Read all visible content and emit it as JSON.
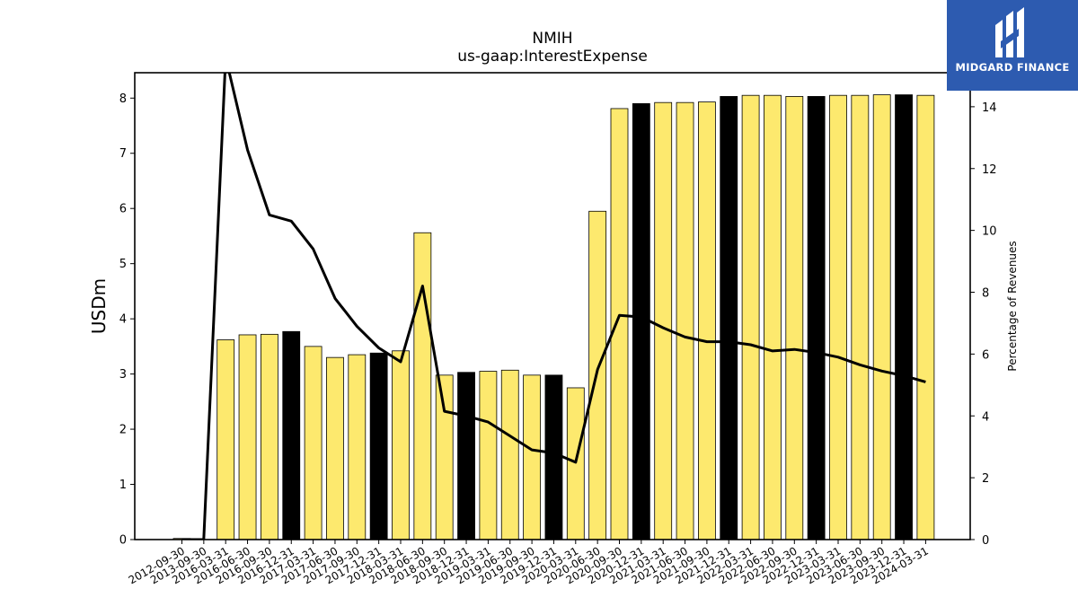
{
  "chart_data": {
    "type": "bar",
    "title": "NMIH",
    "subtitle": "us-gaap:InterestExpense",
    "ylabel": "USDm",
    "y2label": "Percentage of Revenues",
    "ylim": [
      0,
      8.46
    ],
    "y2lim": [
      0,
      15.1
    ],
    "yticks": [
      0,
      1,
      2,
      3,
      4,
      5,
      6,
      7,
      8
    ],
    "y2ticks": [
      0,
      2,
      4,
      6,
      8,
      10,
      12,
      14
    ],
    "categories": [
      "2012-09-30",
      "2013-09-30",
      "2016-03-31",
      "2016-06-30",
      "2016-09-30",
      "2016-12-31",
      "2017-03-31",
      "2017-06-30",
      "2017-09-30",
      "2017-12-31",
      "2018-03-31",
      "2018-06-30",
      "2018-09-30",
      "2018-12-31",
      "2019-03-31",
      "2019-06-30",
      "2019-09-30",
      "2019-12-31",
      "2020-03-31",
      "2020-06-30",
      "2020-09-30",
      "2020-12-31",
      "2021-03-31",
      "2021-06-30",
      "2021-09-30",
      "2021-12-31",
      "2022-03-31",
      "2022-06-30",
      "2022-09-30",
      "2022-12-31",
      "2023-03-31",
      "2023-06-30",
      "2023-09-30",
      "2023-12-31",
      "2024-03-31"
    ],
    "series": [
      {
        "type": "bar",
        "values": [
          0.02,
          0.0,
          3.62,
          3.71,
          3.72,
          3.77,
          3.5,
          3.3,
          3.35,
          3.38,
          3.42,
          5.56,
          2.98,
          3.03,
          3.05,
          3.07,
          2.98,
          2.98,
          2.75,
          5.95,
          7.81,
          7.9,
          7.92,
          7.92,
          7.93,
          8.03,
          8.05,
          8.05,
          8.03,
          8.03,
          8.05,
          8.05,
          8.06,
          8.06,
          8.05
        ],
        "highlight": [
          false,
          false,
          false,
          false,
          false,
          true,
          false,
          false,
          false,
          true,
          false,
          false,
          false,
          true,
          false,
          false,
          false,
          true,
          false,
          false,
          false,
          true,
          false,
          false,
          false,
          true,
          false,
          false,
          false,
          true,
          false,
          false,
          false,
          true,
          false
        ],
        "color": "#fde96e",
        "highlight_color": "#000000"
      },
      {
        "type": "line",
        "axis": "right",
        "values": [
          0,
          0,
          15.6,
          12.6,
          10.5,
          10.3,
          9.4,
          7.8,
          6.9,
          6.2,
          5.75,
          8.2,
          4.15,
          4.0,
          3.8,
          3.35,
          2.9,
          2.8,
          2.5,
          5.5,
          7.25,
          7.2,
          6.85,
          6.55,
          6.4,
          6.4,
          6.3,
          6.1,
          6.15,
          6.05,
          5.9,
          5.65,
          5.45,
          5.3,
          5.1
        ],
        "color": "#000000"
      }
    ]
  },
  "logo": {
    "text": "MIDGARD FINANCE",
    "background": "#2d5bb0"
  }
}
